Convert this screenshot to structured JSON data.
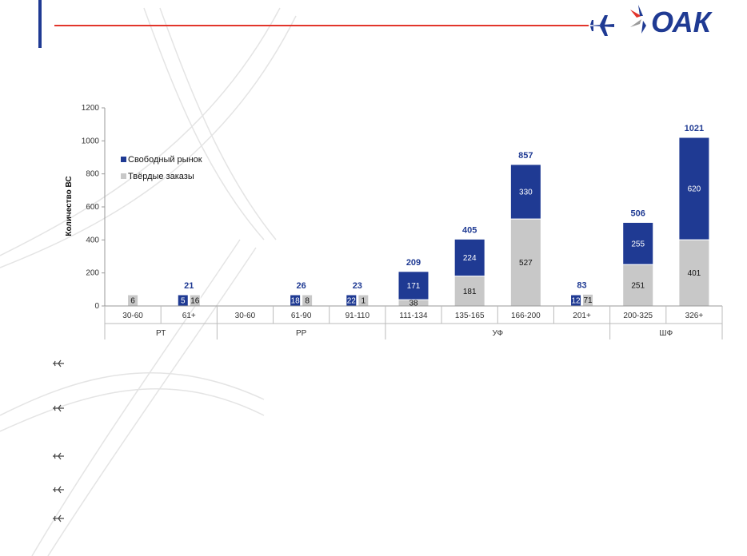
{
  "brand": {
    "logo_text": "ОАК",
    "accent": "#1f3a93",
    "line_color": "#e2352b"
  },
  "bullets": [
    "plane-icon",
    "plane-icon",
    "plane-icon",
    "plane-icon",
    "plane-icon"
  ],
  "chart_data": {
    "type": "bar",
    "stacked": true,
    "ylabel": "Количество ВС",
    "ylim": [
      0,
      1200
    ],
    "yticks": [
      0,
      200,
      400,
      600,
      800,
      1000,
      1200
    ],
    "categories": [
      "30-60",
      "61+",
      "30-60",
      "61-90",
      "91-110",
      "111-134",
      "135-165",
      "166-200",
      "201+",
      "200-325",
      "326+"
    ],
    "groups": [
      {
        "name": "РТ",
        "span": [
          0,
          1
        ]
      },
      {
        "name": "РР",
        "span": [
          2,
          4
        ]
      },
      {
        "name": "УФ",
        "span": [
          5,
          8
        ]
      },
      {
        "name": "ШФ",
        "span": [
          9,
          10
        ]
      }
    ],
    "series": [
      {
        "name": "Твёрдые заказы",
        "color": "#c8c8c8",
        "values": [
          6,
          16,
          0,
          8,
          1,
          38,
          181,
          527,
          71,
          251,
          401
        ]
      },
      {
        "name": "Свободный рынок",
        "color": "#1f3a93",
        "values": [
          0,
          5,
          0,
          18,
          22,
          171,
          224,
          330,
          12,
          255,
          620
        ]
      }
    ],
    "totals": [
      null,
      21,
      null,
      26,
      23,
      209,
      405,
      857,
      83,
      506,
      1021
    ],
    "legend_position": "upper-left"
  }
}
